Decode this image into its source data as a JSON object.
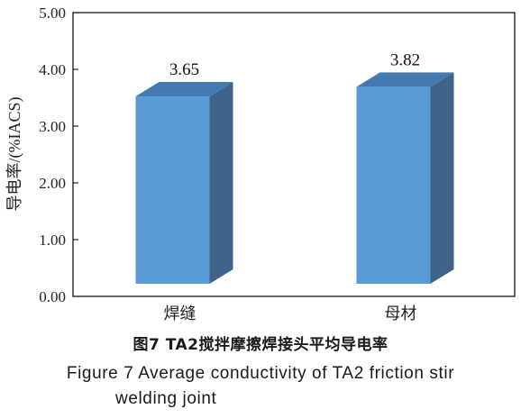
{
  "chart_data": {
    "type": "bar",
    "style": "3d-column",
    "categories": [
      "焊缝",
      "母材"
    ],
    "values": [
      3.65,
      3.82
    ],
    "data_labels": [
      "3.65",
      "3.82"
    ],
    "ylabel": "导电率/(%IACS)",
    "xlabel": "",
    "ylim": [
      0,
      5
    ],
    "yticks": [
      "0.00",
      "1.00",
      "2.00",
      "3.00",
      "4.00",
      "5.00"
    ],
    "grid": false,
    "colors": {
      "front": "#5b9bd5",
      "side": "#3e6489",
      "top": "#447aae"
    }
  },
  "caption": {
    "chinese": "图7 TA2搅拌摩擦焊接头平均导电率",
    "english_line1": "Figure 7   Average conductivity of TA2 friction stir",
    "english_line2": "welding joint"
  }
}
